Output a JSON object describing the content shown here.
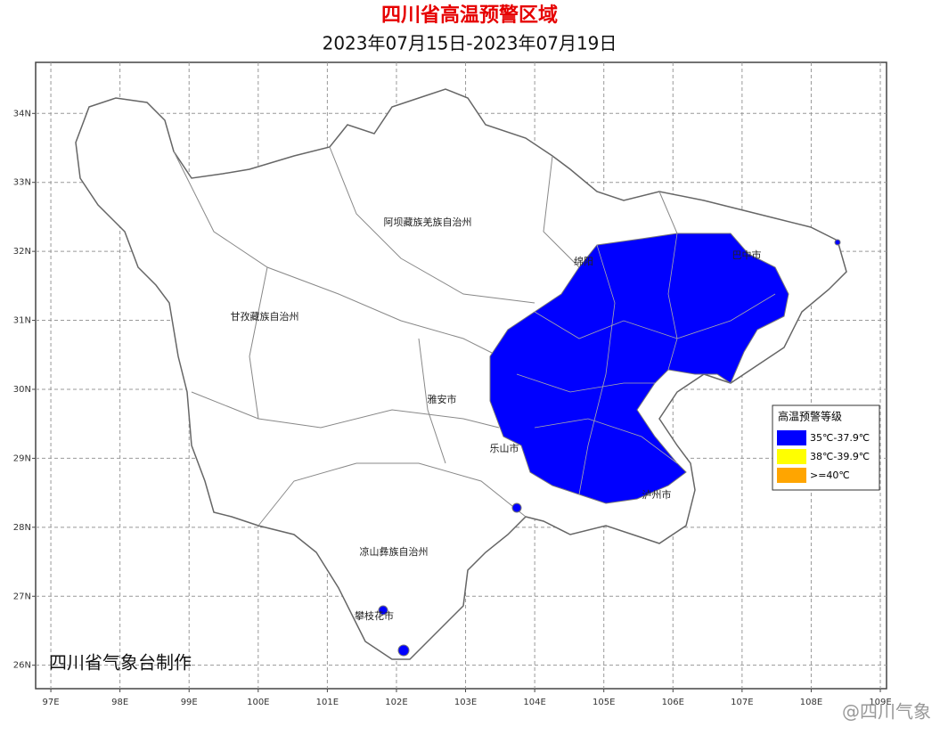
{
  "header": {
    "title": "四川省高温预警区域",
    "subtitle": "2023年07月15日-2023年07月19日"
  },
  "map": {
    "xlim": [
      96.78,
      109.09
    ],
    "ylim": [
      25.66,
      34.74
    ],
    "lon_ticks": [
      {
        "value": 97,
        "label": "97E"
      },
      {
        "value": 98,
        "label": "98E"
      },
      {
        "value": 99,
        "label": "99E"
      },
      {
        "value": 100,
        "label": "100E"
      },
      {
        "value": 101,
        "label": "101E"
      },
      {
        "value": 102,
        "label": "102E"
      },
      {
        "value": 103,
        "label": "103E"
      },
      {
        "value": 104,
        "label": "104E"
      },
      {
        "value": 105,
        "label": "105E"
      },
      {
        "value": 106,
        "label": "106E"
      },
      {
        "value": 107,
        "label": "107E"
      },
      {
        "value": 108,
        "label": "108E"
      },
      {
        "value": 109,
        "label": "109E"
      }
    ],
    "lat_ticks": [
      {
        "value": 26,
        "label": "26N"
      },
      {
        "value": 27,
        "label": "27N"
      },
      {
        "value": 28,
        "label": "28N"
      },
      {
        "value": 29,
        "label": "29N"
      },
      {
        "value": 30,
        "label": "30N"
      },
      {
        "value": 31,
        "label": "31N"
      },
      {
        "value": 32,
        "label": "32N"
      },
      {
        "value": 33,
        "label": "33N"
      },
      {
        "value": 34,
        "label": "34N"
      }
    ],
    "places": [
      "阿坝藏族羌族自治州",
      "甘孜藏族自治州",
      "雅安市",
      "乐山市",
      "凉山彝族自治州",
      "攀枝花市",
      "泸州市",
      "巴中市",
      "绵阳"
    ]
  },
  "legend": {
    "title": "高温预警等级",
    "items": [
      {
        "label": "35℃-37.9℃",
        "color": "#0000ff"
      },
      {
        "label": "38℃-39.9℃",
        "color": "#ffff00"
      },
      {
        "label": ">=40℃",
        "color": "#ffa500"
      }
    ]
  },
  "footer": {
    "credit": "四川省气象台制作",
    "watermark": "@四川气象"
  }
}
